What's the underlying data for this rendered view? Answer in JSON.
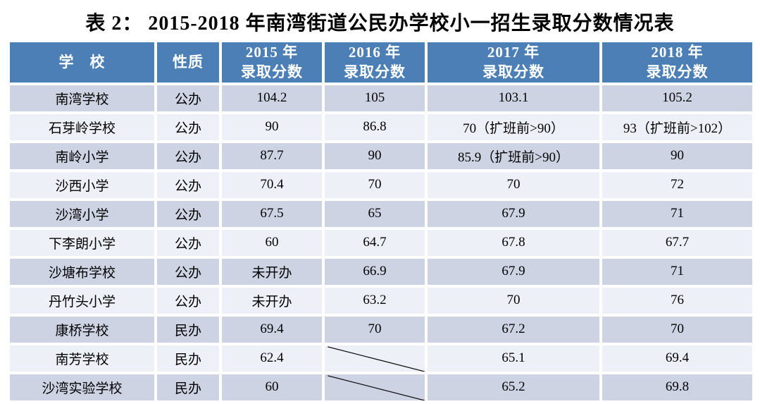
{
  "colors": {
    "header_bg": "#4c7fb5",
    "header_text": "#ffffff",
    "row_odd_bg": "#cdd3e3",
    "row_even_bg": "#eef0f7",
    "slash_line": "#111111",
    "background": "#ffffff",
    "text": "#000000"
  },
  "chart_data": {
    "type": "table",
    "title": "表 2：  2015-2018 年南湾街道公民办学校小一招生录取分数情况表",
    "columns": [
      {
        "line1": "学　校",
        "line2": ""
      },
      {
        "line1": "性质",
        "line2": ""
      },
      {
        "line1": "2015 年",
        "line2": "录取分数"
      },
      {
        "line1": "2016 年",
        "line2": "录取分数"
      },
      {
        "line1": "2017 年",
        "line2": "录取分数"
      },
      {
        "line1": "2018 年",
        "line2": "录取分数"
      }
    ],
    "rows": [
      {
        "school": "南湾学校",
        "type": "公办",
        "y2015": "104.2",
        "y2016": "105",
        "y2017": "103.1",
        "y2018": "105.2",
        "slash_2016": false
      },
      {
        "school": "石芽岭学校",
        "type": "公办",
        "y2015": "90",
        "y2016": "86.8",
        "y2017": "70（扩班前>90）",
        "y2018": "93（扩班前>102）",
        "slash_2016": false
      },
      {
        "school": "南岭小学",
        "type": "公办",
        "y2015": "87.7",
        "y2016": "90",
        "y2017": "85.9（扩班前>90）",
        "y2018": "90",
        "slash_2016": false
      },
      {
        "school": "沙西小学",
        "type": "公办",
        "y2015": "70.4",
        "y2016": "70",
        "y2017": "70",
        "y2018": "72",
        "slash_2016": false
      },
      {
        "school": "沙湾小学",
        "type": "公办",
        "y2015": "67.5",
        "y2016": "65",
        "y2017": "67.9",
        "y2018": "71",
        "slash_2016": false
      },
      {
        "school": "下李朗小学",
        "type": "公办",
        "y2015": "60",
        "y2016": "64.7",
        "y2017": "67.8",
        "y2018": "67.7",
        "slash_2016": false
      },
      {
        "school": "沙塘布学校",
        "type": "公办",
        "y2015": "未开办",
        "y2016": "66.9",
        "y2017": "67.9",
        "y2018": "71",
        "slash_2016": false
      },
      {
        "school": "丹竹头小学",
        "type": "公办",
        "y2015": "未开办",
        "y2016": "63.2",
        "y2017": "70",
        "y2018": "76",
        "slash_2016": false
      },
      {
        "school": "康桥学校",
        "type": "民办",
        "y2015": "69.4",
        "y2016": "70",
        "y2017": "67.2",
        "y2018": "70",
        "slash_2016": false
      },
      {
        "school": "南芳学校",
        "type": "民办",
        "y2015": "62.4",
        "y2016": "",
        "y2017": "65.1",
        "y2018": "69.4",
        "slash_2016": true
      },
      {
        "school": "沙湾实验学校",
        "type": "民办",
        "y2015": "60",
        "y2016": "",
        "y2017": "65.2",
        "y2018": "69.8",
        "slash_2016": true
      }
    ]
  }
}
